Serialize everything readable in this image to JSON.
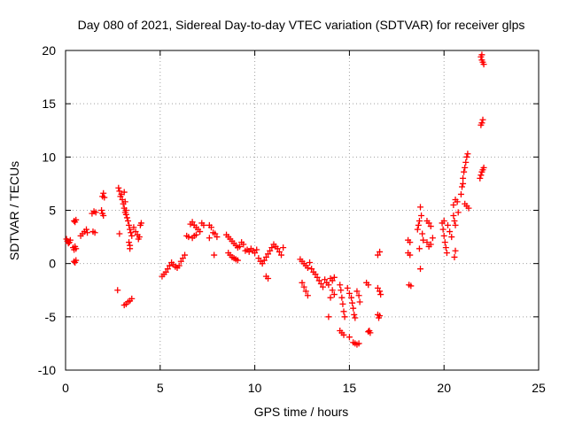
{
  "chart_data": {
    "type": "scatter",
    "title": "Day 080 of 2021, Sidereal Day-to-day VTEC variation (SDTVAR) for receiver glps",
    "xlabel": "GPS time / hours",
    "ylabel": "SDTVAR / TECUs",
    "xlim": [
      0,
      25
    ],
    "ylim": [
      -10,
      20
    ],
    "xticks": [
      0,
      5,
      10,
      15,
      20,
      25
    ],
    "yticks": [
      -10,
      -5,
      0,
      5,
      10,
      15,
      20
    ],
    "xtick_labels": [
      "0",
      "5",
      "10",
      "15",
      "20",
      "25"
    ],
    "ytick_labels": [
      "-10",
      "-5",
      "0",
      "5",
      "10",
      "15",
      "20"
    ],
    "grid": true,
    "marker": "plus",
    "marker_color": "#ff0000",
    "series": [
      {
        "name": "SDTVAR",
        "points": [
          [
            0.05,
            2.3
          ],
          [
            0.1,
            2.1
          ],
          [
            0.15,
            1.9
          ],
          [
            0.2,
            2.0
          ],
          [
            0.25,
            2.2
          ],
          [
            0.4,
            1.5
          ],
          [
            0.45,
            1.3
          ],
          [
            0.5,
            1.6
          ],
          [
            0.55,
            1.4
          ],
          [
            0.45,
            0.2
          ],
          [
            0.5,
            0.1
          ],
          [
            0.55,
            0.3
          ],
          [
            0.45,
            4.0
          ],
          [
            0.5,
            3.9
          ],
          [
            0.55,
            4.1
          ],
          [
            0.8,
            2.6
          ],
          [
            0.9,
            2.8
          ],
          [
            1.0,
            3.0
          ],
          [
            1.1,
            3.2
          ],
          [
            1.15,
            2.9
          ],
          [
            1.4,
            4.7
          ],
          [
            1.5,
            4.9
          ],
          [
            1.6,
            4.8
          ],
          [
            1.45,
            3.0
          ],
          [
            1.55,
            2.9
          ],
          [
            1.9,
            5.0
          ],
          [
            1.95,
            4.7
          ],
          [
            2.0,
            4.5
          ],
          [
            1.95,
            6.3
          ],
          [
            2.0,
            6.6
          ],
          [
            2.05,
            6.2
          ],
          [
            2.8,
            7.1
          ],
          [
            2.85,
            6.8
          ],
          [
            2.9,
            6.3
          ],
          [
            2.95,
            6.5
          ],
          [
            2.85,
            2.8
          ],
          [
            3.0,
            6.0
          ],
          [
            3.05,
            5.6
          ],
          [
            3.1,
            5.2
          ],
          [
            3.15,
            4.8
          ],
          [
            3.2,
            4.6
          ],
          [
            3.25,
            4.3
          ],
          [
            3.3,
            4.0
          ],
          [
            3.35,
            3.6
          ],
          [
            3.4,
            3.2
          ],
          [
            3.45,
            2.9
          ],
          [
            3.5,
            2.6
          ],
          [
            3.1,
            6.7
          ],
          [
            3.15,
            5.8
          ],
          [
            3.2,
            5.0
          ],
          [
            3.35,
            2.0
          ],
          [
            3.4,
            1.7
          ],
          [
            3.4,
            1.4
          ],
          [
            3.6,
            3.4
          ],
          [
            3.7,
            3.0
          ],
          [
            3.8,
            2.7
          ],
          [
            3.9,
            2.5
          ],
          [
            3.95,
            3.6
          ],
          [
            4.0,
            3.8
          ],
          [
            3.85,
            2.3
          ],
          [
            2.75,
            -2.5
          ],
          [
            3.1,
            -3.9
          ],
          [
            3.2,
            -3.8
          ],
          [
            3.3,
            -3.6
          ],
          [
            3.4,
            -3.5
          ],
          [
            3.5,
            -3.3
          ],
          [
            5.1,
            -1.2
          ],
          [
            5.2,
            -1.0
          ],
          [
            5.3,
            -0.8
          ],
          [
            5.4,
            -0.5
          ],
          [
            5.5,
            -0.2
          ],
          [
            5.6,
            0.1
          ],
          [
            5.7,
            -0.1
          ],
          [
            5.8,
            -0.3
          ],
          [
            5.9,
            -0.4
          ],
          [
            6.0,
            -0.2
          ],
          [
            6.1,
            0.2
          ],
          [
            6.2,
            0.5
          ],
          [
            6.3,
            0.8
          ],
          [
            6.4,
            2.6
          ],
          [
            6.5,
            2.5
          ],
          [
            6.7,
            2.4
          ],
          [
            6.8,
            2.6
          ],
          [
            6.9,
            2.7
          ],
          [
            6.6,
            3.7
          ],
          [
            6.7,
            3.9
          ],
          [
            6.8,
            3.6
          ],
          [
            6.9,
            3.4
          ],
          [
            7.0,
            3.2
          ],
          [
            7.1,
            3.0
          ],
          [
            7.2,
            3.8
          ],
          [
            7.3,
            3.6
          ],
          [
            7.6,
            3.6
          ],
          [
            7.7,
            3.4
          ],
          [
            7.8,
            2.9
          ],
          [
            7.85,
            0.8
          ],
          [
            7.6,
            2.4
          ],
          [
            7.9,
            2.8
          ],
          [
            8.0,
            2.5
          ],
          [
            8.5,
            2.7
          ],
          [
            8.6,
            2.5
          ],
          [
            8.7,
            2.3
          ],
          [
            8.8,
            2.1
          ],
          [
            8.9,
            1.9
          ],
          [
            9.0,
            1.7
          ],
          [
            9.1,
            1.5
          ],
          [
            9.2,
            1.6
          ],
          [
            9.3,
            2.0
          ],
          [
            9.4,
            1.8
          ],
          [
            8.6,
            1.0
          ],
          [
            8.7,
            0.8
          ],
          [
            8.8,
            0.6
          ],
          [
            8.9,
            0.5
          ],
          [
            9.0,
            0.4
          ],
          [
            9.1,
            0.3
          ],
          [
            9.5,
            1.2
          ],
          [
            9.6,
            1.3
          ],
          [
            9.7,
            1.1
          ],
          [
            9.8,
            1.4
          ],
          [
            9.9,
            1.2
          ],
          [
            10.0,
            1.0
          ],
          [
            10.1,
            1.3
          ],
          [
            10.2,
            0.5
          ],
          [
            10.3,
            0.2
          ],
          [
            10.4,
            0.0
          ],
          [
            10.5,
            0.3
          ],
          [
            10.6,
            0.6
          ],
          [
            10.7,
            0.9
          ],
          [
            10.8,
            1.2
          ],
          [
            10.9,
            1.5
          ],
          [
            11.0,
            1.8
          ],
          [
            11.1,
            1.6
          ],
          [
            11.2,
            1.4
          ],
          [
            11.3,
            1.1
          ],
          [
            11.4,
            0.8
          ],
          [
            11.5,
            1.5
          ],
          [
            10.6,
            -1.2
          ],
          [
            10.7,
            -1.4
          ],
          [
            12.4,
            0.4
          ],
          [
            12.5,
            0.2
          ],
          [
            12.6,
            0.0
          ],
          [
            12.7,
            -0.2
          ],
          [
            12.8,
            -0.4
          ],
          [
            12.9,
            0.1
          ],
          [
            13.0,
            -0.5
          ],
          [
            13.1,
            -0.8
          ],
          [
            12.5,
            -1.8
          ],
          [
            12.6,
            -2.2
          ],
          [
            12.7,
            -2.6
          ],
          [
            12.8,
            -3.0
          ],
          [
            13.2,
            -1.0
          ],
          [
            13.3,
            -1.3
          ],
          [
            13.4,
            -1.6
          ],
          [
            13.5,
            -1.9
          ],
          [
            13.6,
            -2.2
          ],
          [
            13.7,
            -1.5
          ],
          [
            13.8,
            -1.8
          ],
          [
            13.9,
            -2.0
          ],
          [
            14.0,
            -1.4
          ],
          [
            14.1,
            -1.6
          ],
          [
            14.2,
            -1.3
          ],
          [
            14.1,
            -2.5
          ],
          [
            14.2,
            -2.9
          ],
          [
            14.0,
            -3.2
          ],
          [
            13.9,
            -5.0
          ],
          [
            14.5,
            -2.0
          ],
          [
            14.55,
            -2.5
          ],
          [
            14.6,
            -3.2
          ],
          [
            14.65,
            -3.8
          ],
          [
            14.7,
            -4.5
          ],
          [
            14.75,
            -5.0
          ],
          [
            14.5,
            -6.3
          ],
          [
            14.6,
            -6.5
          ],
          [
            14.7,
            -6.7
          ],
          [
            14.9,
            -2.3
          ],
          [
            15.0,
            -2.8
          ],
          [
            15.1,
            -3.2
          ],
          [
            15.15,
            -3.7
          ],
          [
            15.2,
            -4.2
          ],
          [
            15.25,
            -4.8
          ],
          [
            15.3,
            -5.1
          ],
          [
            15.2,
            -7.4
          ],
          [
            15.3,
            -7.5
          ],
          [
            15.4,
            -7.6
          ],
          [
            15.5,
            -7.5
          ],
          [
            15.0,
            -6.9
          ],
          [
            15.4,
            -2.6
          ],
          [
            15.5,
            -3.0
          ],
          [
            15.55,
            -3.6
          ],
          [
            15.9,
            -1.8
          ],
          [
            16.0,
            -2.0
          ],
          [
            16.05,
            -6.3
          ],
          [
            16.1,
            -6.5
          ],
          [
            16.0,
            -6.4
          ],
          [
            16.5,
            0.8
          ],
          [
            16.6,
            1.1
          ],
          [
            16.5,
            -4.8
          ],
          [
            16.6,
            -4.9
          ],
          [
            16.55,
            -5.1
          ],
          [
            16.5,
            -2.3
          ],
          [
            16.6,
            -2.6
          ],
          [
            16.65,
            -2.9
          ],
          [
            18.1,
            2.2
          ],
          [
            18.2,
            2.0
          ],
          [
            18.1,
            1.0
          ],
          [
            18.2,
            0.8
          ],
          [
            18.15,
            -2.0
          ],
          [
            18.25,
            -2.1
          ],
          [
            18.6,
            3.2
          ],
          [
            18.65,
            3.6
          ],
          [
            18.7,
            4.0
          ],
          [
            18.75,
            5.3
          ],
          [
            18.8,
            4.5
          ],
          [
            18.85,
            2.8
          ],
          [
            18.9,
            2.2
          ],
          [
            18.7,
            1.4
          ],
          [
            18.75,
            -0.5
          ],
          [
            19.1,
            4.0
          ],
          [
            19.2,
            3.8
          ],
          [
            19.3,
            3.5
          ],
          [
            19.1,
            2.0
          ],
          [
            19.2,
            1.6
          ],
          [
            19.3,
            1.8
          ],
          [
            19.4,
            2.4
          ],
          [
            19.9,
            3.8
          ],
          [
            19.95,
            3.2
          ],
          [
            20.0,
            2.6
          ],
          [
            20.05,
            2.0
          ],
          [
            20.1,
            1.5
          ],
          [
            20.15,
            1.0
          ],
          [
            20.0,
            4.0
          ],
          [
            20.2,
            3.6
          ],
          [
            20.3,
            3.0
          ],
          [
            20.4,
            2.5
          ],
          [
            20.5,
            4.5
          ],
          [
            20.55,
            4.0
          ],
          [
            20.6,
            3.6
          ],
          [
            20.5,
            5.5
          ],
          [
            20.6,
            6.0
          ],
          [
            20.7,
            5.8
          ],
          [
            20.75,
            4.8
          ],
          [
            20.6,
            1.2
          ],
          [
            20.55,
            0.6
          ],
          [
            20.9,
            6.5
          ],
          [
            20.95,
            7.2
          ],
          [
            21.0,
            8.0
          ],
          [
            21.05,
            8.6
          ],
          [
            21.1,
            9.0
          ],
          [
            21.15,
            9.5
          ],
          [
            21.2,
            10.0
          ],
          [
            21.25,
            10.3
          ],
          [
            21.0,
            7.5
          ],
          [
            21.1,
            5.6
          ],
          [
            21.2,
            5.4
          ],
          [
            21.3,
            5.2
          ],
          [
            21.9,
            8.0
          ],
          [
            21.95,
            8.3
          ],
          [
            22.0,
            8.6
          ],
          [
            22.05,
            8.8
          ],
          [
            22.1,
            9.0
          ],
          [
            21.95,
            13.0
          ],
          [
            22.0,
            13.2
          ],
          [
            22.05,
            13.5
          ],
          [
            21.95,
            19.4
          ],
          [
            22.0,
            19.1
          ],
          [
            22.05,
            18.9
          ],
          [
            22.1,
            18.7
          ],
          [
            22.0,
            19.6
          ]
        ]
      }
    ]
  }
}
